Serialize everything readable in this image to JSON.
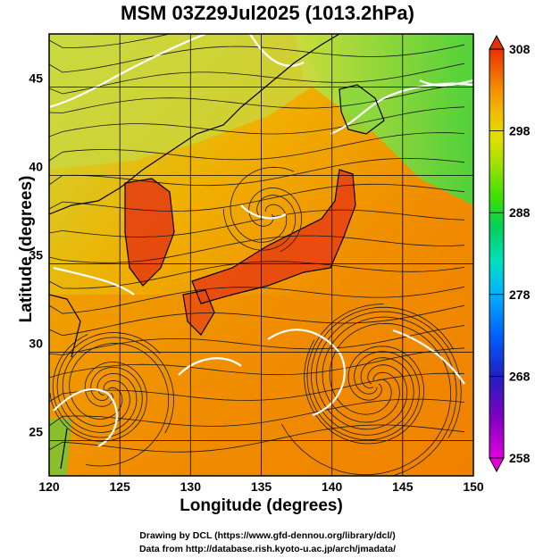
{
  "title": "MSM 03Z29Jul2025 (1013.2hPa)",
  "x_axis": {
    "label": "Longitude (degrees)",
    "ticks": [
      "120",
      "125",
      "130",
      "135",
      "140",
      "145",
      "150"
    ],
    "range": [
      120,
      150
    ]
  },
  "y_axis": {
    "label": "Latitude  (degrees)",
    "ticks": [
      "25",
      "30",
      "35",
      "40",
      "45"
    ],
    "range": [
      22.5,
      47.5
    ]
  },
  "colorbar": {
    "ticks": [
      "258",
      "268",
      "278",
      "288",
      "298",
      "308"
    ],
    "range": [
      258,
      308
    ],
    "colors": [
      "#e000e0",
      "#8000c0",
      "#2020c0",
      "#0060ff",
      "#00b0ff",
      "#00e0c0",
      "#00d060",
      "#40e000",
      "#a0e000",
      "#e0e000",
      "#f0c000",
      "#f59000",
      "#f06000",
      "#e83000"
    ]
  },
  "credits": {
    "line1": "Drawing by DCL (https://www.gfd-dennou.org/library/dcl/)",
    "line2": "Data from http://database.rish.kyoto-u.ac.jp/arch/jmadata/"
  },
  "map": {
    "field": "temperature (K) with streamlines",
    "field_colors": {
      "warm": "#f08000",
      "hot": "#e83010",
      "mild": "#f0b000",
      "cool": "#c8e040",
      "cooler": "#60e060"
    }
  }
}
